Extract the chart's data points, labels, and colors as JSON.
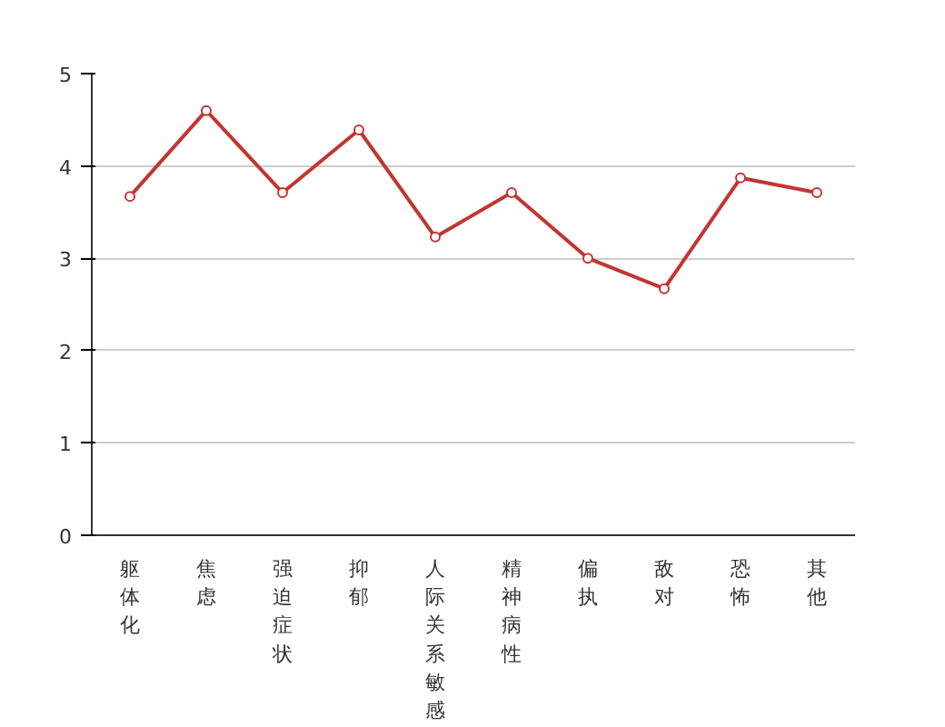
{
  "chart_data": {
    "type": "line",
    "categories": [
      "躯体化",
      "焦虑",
      "强迫症状",
      "抑郁",
      "人际关系敏感",
      "精神病性",
      "偏执",
      "敌对",
      "恐怖",
      "其他"
    ],
    "series": [
      {
        "color": "#c23531",
        "values": [
          3.67,
          4.6,
          3.71,
          4.39,
          3.23,
          3.71,
          3.0,
          2.67,
          3.87,
          3.71
        ]
      }
    ],
    "ylim": [
      0,
      5
    ],
    "yticks": [
      0,
      1,
      2,
      3,
      4,
      5
    ],
    "grid": "y",
    "marker": "circle",
    "line_style": "solid"
  }
}
